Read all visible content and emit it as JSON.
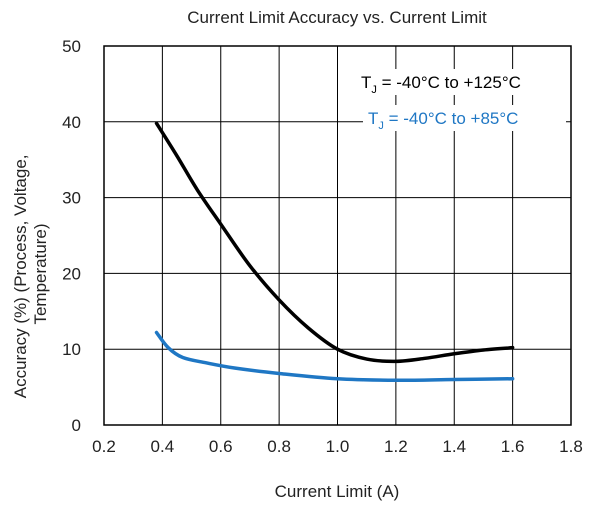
{
  "chart_data": {
    "type": "line",
    "title": "Current Limit Accuracy vs. Current Limit",
    "xlabel": "Current Limit (A)",
    "ylabel_lines": [
      "Accuracy (%) (Process, Voltage,",
      "Temperature)"
    ],
    "xlim": [
      0.2,
      1.8
    ],
    "ylim": [
      0,
      50
    ],
    "x_ticks": [
      "0.2",
      "0.4",
      "0.6",
      "0.8",
      "1.0",
      "1.2",
      "1.4",
      "1.6",
      "1.8"
    ],
    "y_ticks": [
      "0",
      "10",
      "20",
      "30",
      "40",
      "50"
    ],
    "grid": true,
    "legend_position": "top-right",
    "series": [
      {
        "name": "T_J = -40°C to +125°C",
        "legend_main": "T",
        "legend_sub": "J",
        "legend_rest": " = -40°C to +125°C",
        "color": "#000000",
        "points": [
          [
            0.38,
            39.8
          ],
          [
            0.45,
            35.5
          ],
          [
            0.52,
            31.0
          ],
          [
            0.6,
            26.5
          ],
          [
            0.7,
            21.0
          ],
          [
            0.8,
            16.5
          ],
          [
            0.9,
            12.8
          ],
          [
            1.0,
            10.0
          ],
          [
            1.1,
            8.7
          ],
          [
            1.2,
            8.4
          ],
          [
            1.3,
            8.8
          ],
          [
            1.4,
            9.4
          ],
          [
            1.5,
            9.9
          ],
          [
            1.6,
            10.2
          ]
        ]
      },
      {
        "name": "T_J = -40°C to +85°C",
        "legend_main": "T",
        "legend_sub": "J",
        "legend_rest": " = -40°C to +85°C",
        "color": "#1f77c4",
        "points": [
          [
            0.38,
            12.2
          ],
          [
            0.42,
            10.2
          ],
          [
            0.47,
            8.9
          ],
          [
            0.55,
            8.2
          ],
          [
            0.65,
            7.5
          ],
          [
            0.8,
            6.8
          ],
          [
            1.0,
            6.1
          ],
          [
            1.2,
            5.9
          ],
          [
            1.4,
            6.0
          ],
          [
            1.6,
            6.1
          ]
        ]
      }
    ]
  }
}
